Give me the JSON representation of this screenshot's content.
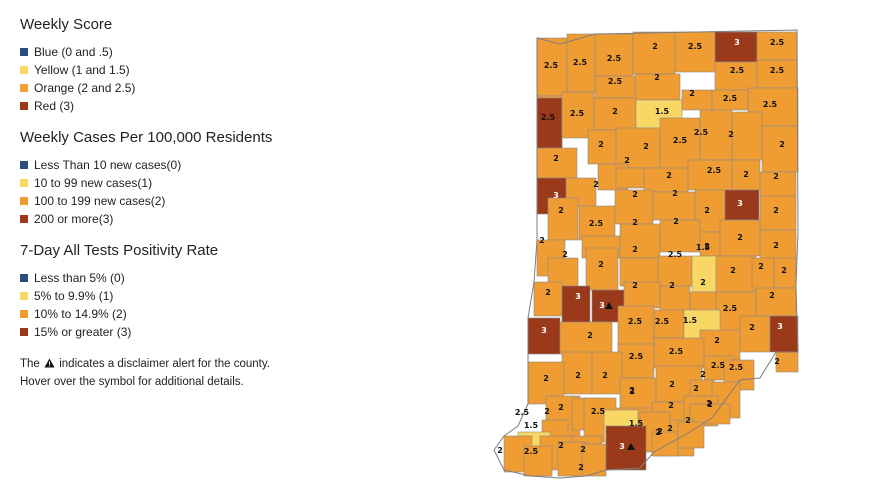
{
  "legend": {
    "sections": [
      {
        "title": "Weekly Score",
        "items": [
          {
            "label": "Blue (0 and .5)",
            "color": "#2b4f7c"
          },
          {
            "label": "Yellow (1 and 1.5)",
            "color": "#f8d764"
          },
          {
            "label": "Orange (2 and 2.5)",
            "color": "#ef9c33"
          },
          {
            "label": "Red (3)",
            "color": "#9a3a1a"
          }
        ]
      },
      {
        "title": "Weekly Cases Per 100,000 Residents",
        "items": [
          {
            "label": "Less Than 10 new cases(0)",
            "color": "#2b4f7c"
          },
          {
            "label": "10 to 99 new cases(1)",
            "color": "#f8d764"
          },
          {
            "label": "100 to 199 new cases(2)",
            "color": "#ef9c33"
          },
          {
            "label": "200 or more(3)",
            "color": "#9a3a1a"
          }
        ]
      },
      {
        "title": "7-Day All Tests Positivity Rate",
        "items": [
          {
            "label": "Less than 5% (0)",
            "color": "#2b4f7c"
          },
          {
            "label": "5% to 9.9% (1)",
            "color": "#f8d764"
          },
          {
            "label": "10% to 14.9% (2)",
            "color": "#ef9c33"
          },
          {
            "label": "15% or greater (3)",
            "color": "#9a3a1a"
          }
        ]
      }
    ],
    "disclaimer_before": "The",
    "disclaimer_after": "indicates a disclaimer alert for the county. Hover over the symbol for additional details.",
    "disclaimer_icon": "warning-triangle-icon"
  },
  "colors": {
    "orange": "#ef9c33",
    "yellow": "#f8d764",
    "red": "#9a3a1a",
    "border": "#8a8a8a"
  },
  "map": {
    "counties": [
      {
        "score": "2.5",
        "color": "orange"
      },
      {
        "score": "2.5",
        "color": "orange"
      },
      {
        "score": "2.5",
        "color": "orange"
      },
      {
        "score": "2",
        "color": "orange"
      },
      {
        "score": "2.5",
        "color": "orange"
      },
      {
        "score": "3",
        "color": "red"
      },
      {
        "score": "2.5",
        "color": "orange"
      },
      {
        "score": "2.5",
        "color": "orange"
      },
      {
        "score": "2",
        "color": "orange"
      },
      {
        "score": "2.5",
        "color": "orange"
      },
      {
        "score": "2.5",
        "color": "orange"
      },
      {
        "score": "2.5",
        "color": "orange"
      },
      {
        "score": "3",
        "color": "red"
      },
      {
        "score": "2.5",
        "color": "orange"
      },
      {
        "score": "2",
        "color": "orange"
      },
      {
        "score": "1.5",
        "color": "yellow"
      },
      {
        "score": "2",
        "color": "orange"
      },
      {
        "score": "2.5",
        "color": "orange"
      },
      {
        "score": "2.5",
        "color": "orange"
      },
      {
        "score": "2",
        "color": "orange"
      },
      {
        "score": "2",
        "color": "orange"
      },
      {
        "score": "2",
        "color": "orange"
      },
      {
        "score": "2.5",
        "color": "orange"
      },
      {
        "score": "2.5",
        "color": "orange"
      },
      {
        "score": "2",
        "color": "orange"
      },
      {
        "score": "2",
        "color": "orange"
      },
      {
        "score": "2",
        "color": "orange"
      },
      {
        "score": "2",
        "color": "orange"
      },
      {
        "score": "2",
        "color": "orange"
      },
      {
        "score": "2.5",
        "color": "orange"
      },
      {
        "score": "2",
        "color": "orange"
      },
      {
        "score": "2",
        "color": "orange"
      },
      {
        "score": "3",
        "color": "red"
      },
      {
        "score": "2",
        "color": "orange"
      },
      {
        "score": "2",
        "color": "orange"
      },
      {
        "score": "2.5",
        "color": "orange"
      },
      {
        "score": "2",
        "color": "orange"
      },
      {
        "score": "2",
        "color": "orange"
      },
      {
        "score": "2",
        "color": "orange"
      },
      {
        "score": "3",
        "color": "red"
      },
      {
        "score": "2",
        "color": "orange"
      },
      {
        "score": "2",
        "color": "orange"
      },
      {
        "score": "2",
        "color": "orange"
      },
      {
        "score": "2",
        "color": "orange"
      },
      {
        "score": "2",
        "color": "orange"
      },
      {
        "score": "2",
        "color": "orange"
      },
      {
        "score": "2",
        "color": "orange"
      },
      {
        "score": "2",
        "color": "orange"
      },
      {
        "score": "2",
        "color": "orange"
      },
      {
        "score": "2",
        "color": "orange"
      },
      {
        "score": "2",
        "color": "orange"
      },
      {
        "score": "2.5",
        "color": "orange"
      },
      {
        "score": "1.5",
        "color": "yellow"
      },
      {
        "score": "2",
        "color": "orange"
      },
      {
        "score": "2",
        "color": "orange"
      },
      {
        "score": "2",
        "color": "orange"
      },
      {
        "score": "2",
        "color": "orange"
      },
      {
        "score": "3",
        "color": "red"
      },
      {
        "score": "3",
        "color": "red"
      },
      {
        "score": "2",
        "color": "orange"
      },
      {
        "score": "2",
        "color": "orange"
      },
      {
        "score": "2",
        "color": "orange"
      },
      {
        "score": "2.5",
        "color": "orange"
      },
      {
        "score": "2",
        "color": "orange"
      },
      {
        "score": "3",
        "color": "red"
      },
      {
        "score": "2",
        "color": "orange"
      },
      {
        "score": "2.5",
        "color": "orange"
      },
      {
        "score": "2.5",
        "color": "orange"
      },
      {
        "score": "1.5",
        "color": "yellow"
      },
      {
        "score": "2",
        "color": "orange"
      },
      {
        "score": "2",
        "color": "orange"
      },
      {
        "score": "3",
        "color": "red"
      },
      {
        "score": "2.5",
        "color": "orange"
      },
      {
        "score": "2.5",
        "color": "orange"
      },
      {
        "score": "2.5",
        "color": "orange"
      },
      {
        "score": "2.5",
        "color": "orange"
      },
      {
        "score": "2",
        "color": "orange"
      },
      {
        "score": "2",
        "color": "orange"
      },
      {
        "score": "2",
        "color": "orange"
      },
      {
        "score": "2",
        "color": "orange"
      },
      {
        "score": "2",
        "color": "orange"
      },
      {
        "score": "2",
        "color": "orange"
      },
      {
        "score": "2",
        "color": "orange"
      },
      {
        "score": "2",
        "color": "orange"
      },
      {
        "score": "2.5",
        "color": "orange"
      },
      {
        "score": "2.5",
        "color": "orange"
      },
      {
        "score": "2.5",
        "color": "orange"
      },
      {
        "score": "2",
        "color": "orange"
      },
      {
        "score": "2",
        "color": "orange"
      },
      {
        "score": "2",
        "color": "orange"
      },
      {
        "score": "2",
        "color": "orange"
      },
      {
        "score": "1.5",
        "color": "yellow"
      },
      {
        "score": "2",
        "color": "orange"
      },
      {
        "score": "2",
        "color": "orange"
      },
      {
        "score": "2",
        "color": "orange"
      },
      {
        "score": "2.5",
        "color": "orange"
      },
      {
        "score": "2",
        "color": "orange"
      },
      {
        "score": "2",
        "color": "orange"
      },
      {
        "score": "2",
        "color": "orange"
      },
      {
        "score": "1.5",
        "color": "yellow"
      },
      {
        "score": "2",
        "color": "orange"
      },
      {
        "score": "2",
        "color": "orange"
      },
      {
        "score": "2",
        "color": "orange"
      },
      {
        "score": "2",
        "color": "orange"
      },
      {
        "score": "3",
        "color": "red"
      }
    ],
    "alert_icon": "warning-triangle-icon"
  }
}
